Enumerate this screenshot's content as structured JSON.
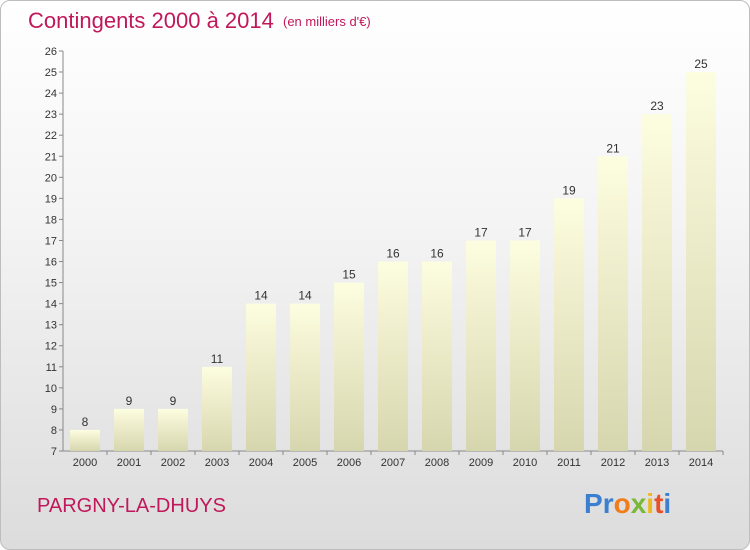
{
  "header": {
    "title": "Contingents 2000 à 2014",
    "subtitle": "(en milliers d'€)"
  },
  "footer": {
    "commune": "PARGNY-LA-DHUYS",
    "logo_text": "Proxiti",
    "logo_letters": [
      "P",
      "r",
      "o",
      "x",
      "i",
      "t",
      "i"
    ],
    "logo_colors": [
      "#3a7fd0",
      "#3a7fd0",
      "#f07c1a",
      "#7ab838",
      "#f0b81a",
      "#e8502a",
      "#3a7fd0"
    ]
  },
  "chart_data": {
    "type": "bar",
    "title": "Contingents 2000 à 2014",
    "subtitle": "(en milliers d'€)",
    "xlabel": "",
    "ylabel": "",
    "categories": [
      "2000",
      "2001",
      "2002",
      "2003",
      "2004",
      "2005",
      "2006",
      "2007",
      "2008",
      "2009",
      "2010",
      "2011",
      "2012",
      "2013",
      "2014"
    ],
    "values": [
      8,
      9,
      9,
      11,
      14,
      14,
      15,
      16,
      16,
      17,
      17,
      19,
      21,
      23,
      25
    ],
    "ylim": [
      7,
      26
    ],
    "yticks": [
      7,
      8,
      9,
      10,
      11,
      12,
      13,
      14,
      15,
      16,
      17,
      18,
      19,
      20,
      21,
      22,
      23,
      24,
      25,
      26
    ],
    "grid": false,
    "legend": "none",
    "colors": {
      "bar_top": "#fdfde0",
      "bar_bottom": "#d6d6ae",
      "axis": "#888888",
      "text": "#333333"
    }
  }
}
